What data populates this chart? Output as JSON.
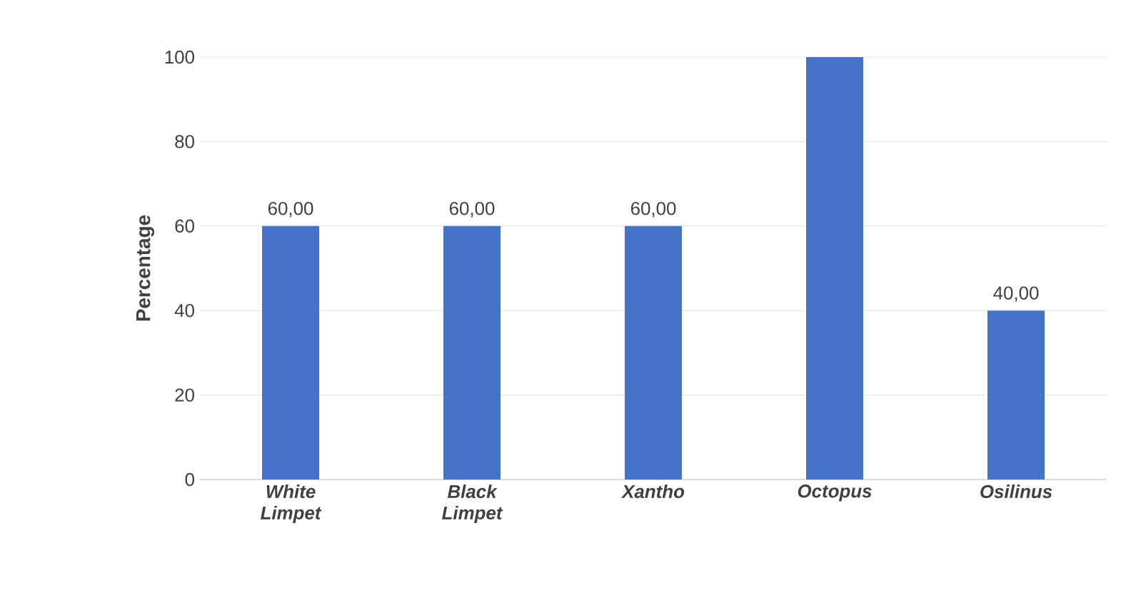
{
  "chart_data": {
    "type": "bar",
    "ylabel": "Percentage",
    "categories": [
      "White Limpet",
      "Black Limpet",
      "Xantho",
      "Octopus",
      "Osilinus"
    ],
    "values": [
      60,
      60,
      60,
      100,
      40
    ],
    "value_labels": [
      "60,00",
      "60,00",
      "60,00",
      null,
      "40,00"
    ],
    "color": "#4472c4",
    "ylim": [
      0,
      100
    ],
    "yticks": [
      0,
      20,
      40,
      60,
      80,
      100
    ],
    "grid": "y"
  }
}
